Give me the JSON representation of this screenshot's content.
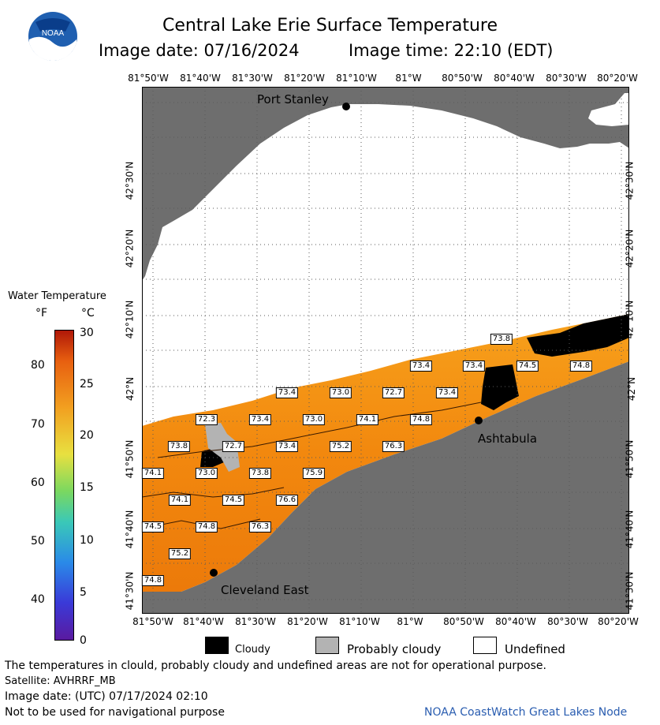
{
  "title": "Central Lake Erie Surface Temperature",
  "image_date_line": "Image date: 07/16/2024",
  "image_time_line": "Image time: 22:10 (EDT)",
  "lon_labels": [
    "81°50'W",
    "81°40'W",
    "81°30'W",
    "81°20'W",
    "81°10'W",
    "81°W",
    "80°50'W",
    "80°40'W",
    "80°30'W",
    "80°20'W"
  ],
  "lat_labels": [
    "42°30'N",
    "42°20'N",
    "42°10'N",
    "42°N",
    "41°50'N",
    "41°40'N",
    "41°30'N"
  ],
  "places": {
    "port_stanley": "Port Stanley",
    "ashtabula": "Ashtabula",
    "cleveland_east": "Cleveland East"
  },
  "temperature_tags": [
    {
      "v": "73.8"
    },
    {
      "v": "73.4"
    },
    {
      "v": "73.4"
    },
    {
      "v": "74.5"
    },
    {
      "v": "74.8"
    },
    {
      "v": "73.4"
    },
    {
      "v": "73.0"
    },
    {
      "v": "72.7"
    },
    {
      "v": "73.4"
    },
    {
      "v": "72.3"
    },
    {
      "v": "73.4"
    },
    {
      "v": "73.0"
    },
    {
      "v": "74.1"
    },
    {
      "v": "74.8"
    },
    {
      "v": "73.8"
    },
    {
      "v": "72.7"
    },
    {
      "v": "73.4"
    },
    {
      "v": "75.2"
    },
    {
      "v": "76.3"
    },
    {
      "v": "74.1"
    },
    {
      "v": "73.0"
    },
    {
      "v": "73.8"
    },
    {
      "v": "75.9"
    },
    {
      "v": "74.1"
    },
    {
      "v": "74.5"
    },
    {
      "v": "76.6"
    },
    {
      "v": "74.5"
    },
    {
      "v": "74.8"
    },
    {
      "v": "76.3"
    },
    {
      "v": "75.2"
    },
    {
      "v": "74.8"
    }
  ],
  "legend": {
    "title": "Water Temperature",
    "unit_f": "°F",
    "unit_c": "°C",
    "f_ticks": [
      "80",
      "70",
      "60",
      "50",
      "40"
    ],
    "c_ticks": [
      "30",
      "25",
      "20",
      "15",
      "10",
      "5",
      "0"
    ]
  },
  "key": {
    "cloudy": "Cloudy",
    "probably_cloudy": "Probably cloudy",
    "undefined": "Undefined"
  },
  "footer": {
    "disclaimer": "The temperatures in clould, probably cloudy and undefined areas are not for operational purpose.",
    "satellite": "Satellite: AVHRRF_MB",
    "utc_date": "Image date: (UTC) 07/17/2024  02:10",
    "nav_warning": "Not to be used for navigational purpose",
    "credit": "NOAA CoastWatch Great Lakes Node"
  },
  "colors": {
    "land": "#6e6e6e",
    "water_warm": "#f28a0e",
    "credit_blue": "#2a5db0"
  },
  "logo_text": "NOAA"
}
